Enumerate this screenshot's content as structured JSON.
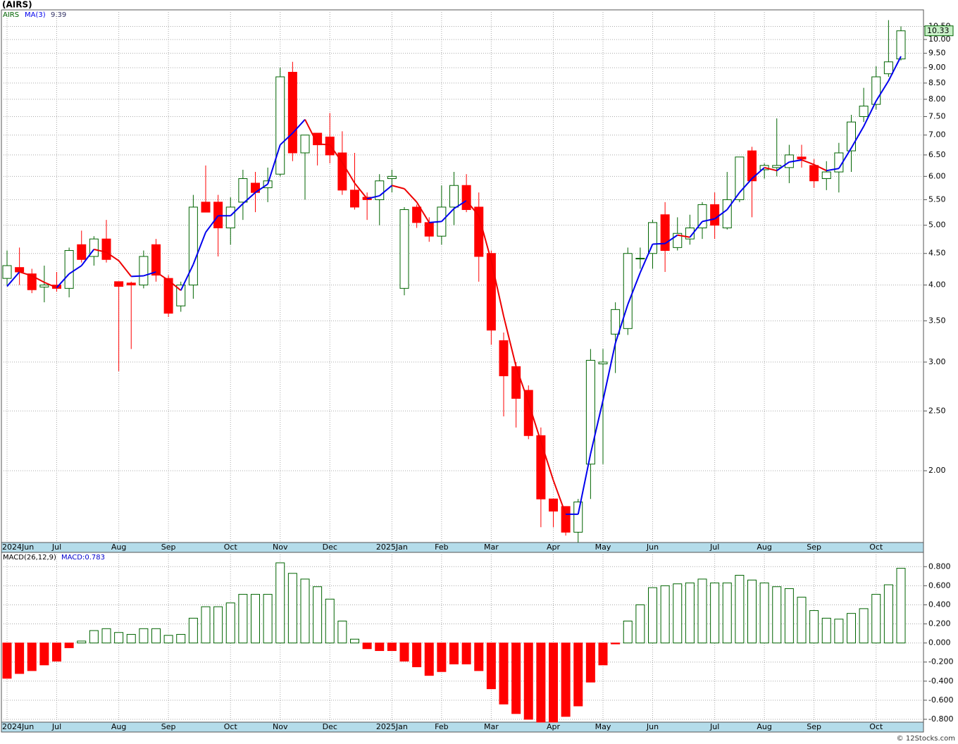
{
  "chart_data": [
    {
      "type": "candlestick",
      "title": "(AIRS)",
      "categories": [
        "2024Jun",
        null,
        null,
        null,
        "Jul",
        null,
        null,
        null,
        null,
        "Aug",
        null,
        null,
        null,
        "Sep",
        null,
        null,
        null,
        null,
        "Oct",
        null,
        null,
        null,
        "Nov",
        null,
        null,
        null,
        "Dec",
        null,
        null,
        null,
        null,
        "2025Jan",
        null,
        null,
        null,
        "Feb",
        null,
        null,
        null,
        "Mar",
        null,
        null,
        null,
        null,
        "Apr",
        null,
        null,
        null,
        "May",
        null,
        null,
        null,
        "Jun",
        null,
        null,
        null,
        null,
        "Jul",
        null,
        null,
        null,
        "Aug",
        null,
        null,
        null,
        "Sep",
        null,
        null,
        null,
        null,
        "Oct",
        null,
        null
      ],
      "series": [
        {
          "name": "AIRS",
          "color": "#006400",
          "down_color": "#ff0000",
          "open": [
            4.1,
            4.27,
            4.17,
            3.97,
            4.0,
            3.95,
            4.65,
            4.45,
            4.75,
            4.05,
            4.03,
            4.0,
            4.65,
            4.1,
            3.7,
            4.0,
            5.45,
            5.45,
            4.95,
            5.45,
            5.85,
            5.75,
            6.05,
            8.85,
            6.55,
            7.05,
            6.95,
            6.55,
            5.7,
            5.55,
            5.5,
            5.95,
            3.95,
            5.35,
            5.05,
            4.8,
            5.35,
            5.8,
            5.35,
            4.5,
            3.25,
            2.95,
            2.7,
            2.28,
            1.8,
            1.75,
            1.59,
            2.05,
            2.98,
            3.33,
            3.4,
            4.42,
            4.5,
            5.2,
            4.6,
            4.75,
            4.95,
            5.4,
            4.95,
            5.5,
            6.6,
            6.15,
            6.2,
            6.2,
            6.45,
            6.25,
            5.95,
            6.1,
            6.6,
            7.5,
            7.85,
            8.8,
            9.3
          ],
          "high": [
            4.55,
            4.6,
            4.25,
            4.3,
            4.2,
            4.6,
            4.9,
            4.8,
            5.1,
            4.05,
            4.05,
            4.55,
            4.75,
            4.15,
            4.05,
            5.6,
            6.25,
            5.6,
            5.55,
            6.15,
            6.1,
            6.2,
            9.0,
            9.2,
            7.0,
            7.05,
            7.6,
            7.1,
            6.55,
            5.65,
            6.05,
            6.15,
            5.35,
            5.4,
            5.15,
            5.8,
            6.1,
            6.05,
            5.65,
            4.55,
            3.35,
            3.0,
            2.75,
            2.35,
            1.8,
            1.75,
            1.8,
            3.15,
            3.15,
            3.75,
            4.6,
            4.6,
            5.1,
            5.45,
            5.15,
            5.2,
            5.45,
            5.65,
            6.1,
            6.45,
            6.7,
            6.3,
            7.45,
            6.75,
            6.75,
            6.4,
            6.35,
            6.8,
            7.55,
            8.35,
            9.05,
            10.75,
            10.5
          ],
          "low": [
            4.0,
            4.0,
            3.88,
            3.75,
            3.9,
            3.82,
            4.35,
            4.3,
            4.35,
            2.9,
            3.15,
            3.95,
            4.05,
            3.55,
            3.62,
            3.8,
            5.25,
            4.45,
            4.65,
            5.1,
            5.25,
            5.45,
            6.0,
            6.35,
            5.5,
            6.25,
            6.3,
            5.6,
            5.3,
            5.1,
            5.0,
            5.65,
            3.85,
            4.95,
            4.7,
            4.65,
            5.0,
            5.25,
            4.05,
            3.2,
            2.45,
            2.35,
            2.25,
            1.62,
            1.62,
            1.57,
            1.53,
            1.8,
            2.05,
            2.88,
            3.32,
            4.25,
            4.25,
            4.2,
            4.55,
            4.65,
            4.75,
            4.75,
            4.92,
            5.45,
            5.15,
            5.95,
            6.0,
            5.85,
            6.2,
            5.75,
            5.7,
            5.65,
            6.1,
            7.35,
            7.7,
            8.7,
            9.25
          ],
          "close": [
            4.3,
            4.2,
            3.93,
            4.0,
            3.95,
            4.55,
            4.4,
            4.75,
            4.4,
            3.98,
            4.0,
            4.45,
            4.15,
            3.6,
            4.0,
            5.35,
            5.25,
            4.95,
            5.35,
            5.95,
            5.65,
            5.9,
            8.7,
            6.55,
            7.0,
            6.75,
            6.5,
            5.7,
            5.35,
            5.5,
            5.9,
            6.0,
            5.3,
            5.05,
            4.8,
            5.35,
            5.8,
            5.3,
            4.45,
            3.38,
            2.85,
            2.62,
            2.28,
            1.8,
            1.72,
            1.59,
            1.78,
            3.02,
            3.0,
            3.65,
            4.5,
            4.42,
            5.05,
            4.55,
            4.85,
            4.95,
            5.4,
            5.0,
            5.5,
            6.45,
            5.9,
            6.25,
            6.25,
            6.5,
            6.4,
            5.9,
            6.1,
            6.55,
            7.35,
            7.8,
            8.7,
            9.2,
            10.33
          ]
        },
        {
          "name": "MA(3)",
          "type": "line",
          "color": "#0000ee",
          "down_color": "#ee0000",
          "values": [
            3.98,
            4.2,
            4.14,
            4.04,
            3.96,
            4.17,
            4.3,
            4.57,
            4.52,
            4.38,
            4.13,
            4.14,
            4.2,
            4.07,
            3.92,
            4.32,
            4.87,
            5.18,
            5.18,
            5.42,
            5.65,
            5.83,
            6.75,
            7.05,
            7.42,
            6.77,
            6.75,
            6.32,
            5.85,
            5.52,
            5.58,
            5.8,
            5.73,
            5.45,
            5.05,
            5.07,
            5.32,
            5.48,
            5.18,
            4.38,
            3.56,
            2.95,
            2.58,
            2.23,
            1.93,
            1.7,
            1.7,
            2.13,
            2.6,
            3.22,
            3.72,
            4.19,
            4.66,
            4.67,
            4.82,
            4.78,
            5.07,
            5.12,
            5.3,
            5.65,
            5.95,
            6.2,
            6.13,
            6.33,
            6.38,
            6.27,
            6.13,
            6.18,
            6.67,
            7.23,
            7.95,
            8.57,
            9.39
          ]
        }
      ],
      "log_scale": true,
      "grid": true,
      "last_value_color": "#c8f0c8",
      "ylim": [
        1.53,
        11.17
      ],
      "yticks": [
        {
          "value": 2,
          "label": "2.00"
        },
        {
          "value": 2.5,
          "label": "2.50"
        },
        {
          "value": 3,
          "label": "3.00"
        },
        {
          "value": 3.5,
          "label": "3.50"
        },
        {
          "value": 4,
          "label": "4.00"
        },
        {
          "value": 4.5,
          "label": "4.50"
        },
        {
          "value": 5,
          "label": "5.00"
        },
        {
          "value": 5.5,
          "label": "5.50"
        },
        {
          "value": 6,
          "label": "6.00"
        },
        {
          "value": 6.5,
          "label": "6.50"
        },
        {
          "value": 7,
          "label": "7.00"
        },
        {
          "value": 7.5,
          "label": "7.50"
        },
        {
          "value": 8,
          "label": "8.00"
        },
        {
          "value": 8.5,
          "label": "8.50"
        },
        {
          "value": 9,
          "label": "9.00"
        },
        {
          "value": 9.5,
          "label": "9.50"
        },
        {
          "value": 10,
          "label": "10.00"
        },
        {
          "value": 10.5,
          "label": "10.50"
        }
      ]
    },
    {
      "type": "bar",
      "title": "MACD(26,12,9)",
      "legend": "MACD:0.783",
      "series": [
        {
          "name": "MACD",
          "color": "#006400",
          "down_color": "#ff0000",
          "values": [
            -0.37,
            -0.32,
            -0.29,
            -0.23,
            -0.19,
            -0.05,
            0.02,
            0.13,
            0.15,
            0.11,
            0.09,
            0.15,
            0.15,
            0.08,
            0.09,
            0.26,
            0.38,
            0.38,
            0.42,
            0.51,
            0.51,
            0.51,
            0.84,
            0.73,
            0.67,
            0.59,
            0.46,
            0.23,
            0.04,
            -0.06,
            -0.08,
            -0.08,
            -0.19,
            -0.25,
            -0.34,
            -0.3,
            -0.22,
            -0.22,
            -0.29,
            -0.48,
            -0.64,
            -0.74,
            -0.8,
            -0.83,
            -0.83,
            -0.77,
            -0.66,
            -0.41,
            -0.23,
            -0.01,
            0.23,
            0.4,
            0.58,
            0.6,
            0.62,
            0.63,
            0.67,
            0.63,
            0.63,
            0.71,
            0.66,
            0.63,
            0.59,
            0.57,
            0.48,
            0.34,
            0.26,
            0.25,
            0.31,
            0.36,
            0.51,
            0.61,
            0.783
          ]
        }
      ],
      "grid": true,
      "ylim": [
        -0.83,
        0.95
      ],
      "yticks": [
        {
          "value": -0.8,
          "label": "-0.800"
        },
        {
          "value": -0.6,
          "label": "-0.600"
        },
        {
          "value": -0.4,
          "label": "-0.400"
        },
        {
          "value": -0.2,
          "label": "-0.200"
        },
        {
          "value": 0,
          "label": "0.000"
        },
        {
          "value": 0.2,
          "label": "0.200"
        },
        {
          "value": 0.4,
          "label": "0.400"
        },
        {
          "value": 0.6,
          "label": "0.600"
        },
        {
          "value": 0.8,
          "label": "0.800"
        }
      ]
    }
  ],
  "footer": "© 12Stocks.com"
}
